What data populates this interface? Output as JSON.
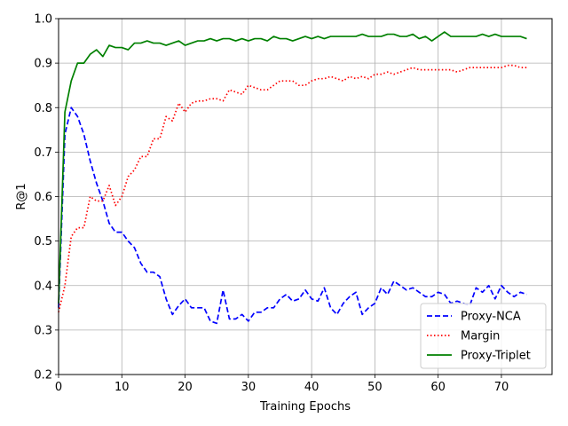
{
  "chart_data": {
    "type": "line",
    "title": "",
    "xlabel": "Training Epochs",
    "ylabel": "R@1",
    "xlim": [
      0,
      78
    ],
    "ylim": [
      0.2,
      1.0
    ],
    "xticks": [
      0,
      10,
      20,
      30,
      40,
      50,
      60,
      70
    ],
    "xtick_labels": [
      "0",
      "10",
      "20",
      "30",
      "40",
      "50",
      "60",
      "70"
    ],
    "yticks": [
      0.2,
      0.3,
      0.4,
      0.5,
      0.6,
      0.7,
      0.8,
      0.9,
      1.0
    ],
    "ytick_labels": [
      "0.2",
      "0.3",
      "0.4",
      "0.5",
      "0.6",
      "0.7",
      "0.8",
      "0.9",
      "1.0"
    ],
    "grid": true,
    "legend_position": "lower-right",
    "series": [
      {
        "name": "Proxy-NCA",
        "color": "#0000ff",
        "dash": "dashed",
        "x": [
          0,
          1,
          2,
          3,
          4,
          5,
          6,
          7,
          8,
          9,
          10,
          11,
          12,
          13,
          14,
          15,
          16,
          17,
          18,
          19,
          20,
          21,
          22,
          23,
          24,
          25,
          26,
          27,
          28,
          29,
          30,
          31,
          32,
          33,
          34,
          35,
          36,
          37,
          38,
          39,
          40,
          41,
          42,
          43,
          44,
          45,
          46,
          47,
          48,
          49,
          50,
          51,
          52,
          53,
          54,
          55,
          56,
          57,
          58,
          59,
          60,
          61,
          62,
          63,
          64,
          65,
          66,
          67,
          68,
          69,
          70,
          71,
          72,
          73,
          74
        ],
        "y": [
          0.35,
          0.74,
          0.8,
          0.78,
          0.74,
          0.68,
          0.63,
          0.59,
          0.54,
          0.52,
          0.52,
          0.5,
          0.485,
          0.45,
          0.43,
          0.43,
          0.42,
          0.37,
          0.335,
          0.355,
          0.37,
          0.35,
          0.35,
          0.35,
          0.32,
          0.315,
          0.39,
          0.325,
          0.325,
          0.335,
          0.32,
          0.34,
          0.34,
          0.35,
          0.35,
          0.37,
          0.38,
          0.365,
          0.37,
          0.39,
          0.37,
          0.365,
          0.395,
          0.35,
          0.335,
          0.36,
          0.375,
          0.385,
          0.335,
          0.35,
          0.36,
          0.395,
          0.38,
          0.41,
          0.4,
          0.39,
          0.395,
          0.385,
          0.375,
          0.375,
          0.385,
          0.38,
          0.36,
          0.365,
          0.36,
          0.355,
          0.395,
          0.385,
          0.4,
          0.37,
          0.4,
          0.385,
          0.375,
          0.385,
          0.38
        ]
      },
      {
        "name": "Margin",
        "color": "#ff0000",
        "dash": "dotted",
        "x": [
          0,
          1,
          2,
          3,
          4,
          5,
          6,
          7,
          8,
          9,
          10,
          11,
          12,
          13,
          14,
          15,
          16,
          17,
          18,
          19,
          20,
          21,
          22,
          23,
          24,
          25,
          26,
          27,
          28,
          29,
          30,
          31,
          32,
          33,
          34,
          35,
          36,
          37,
          38,
          39,
          40,
          41,
          42,
          43,
          44,
          45,
          46,
          47,
          48,
          49,
          50,
          51,
          52,
          53,
          54,
          55,
          56,
          57,
          58,
          59,
          60,
          61,
          62,
          63,
          64,
          65,
          66,
          67,
          68,
          69,
          70,
          71,
          72,
          73,
          74
        ],
        "y": [
          0.34,
          0.4,
          0.51,
          0.53,
          0.53,
          0.6,
          0.59,
          0.59,
          0.625,
          0.58,
          0.6,
          0.645,
          0.66,
          0.69,
          0.69,
          0.73,
          0.73,
          0.78,
          0.77,
          0.81,
          0.79,
          0.81,
          0.815,
          0.815,
          0.82,
          0.82,
          0.815,
          0.84,
          0.835,
          0.83,
          0.85,
          0.845,
          0.84,
          0.84,
          0.85,
          0.86,
          0.86,
          0.86,
          0.85,
          0.85,
          0.86,
          0.865,
          0.865,
          0.87,
          0.865,
          0.86,
          0.87,
          0.865,
          0.87,
          0.865,
          0.875,
          0.875,
          0.88,
          0.875,
          0.88,
          0.885,
          0.89,
          0.885,
          0.885,
          0.885,
          0.885,
          0.885,
          0.885,
          0.88,
          0.885,
          0.89,
          0.89,
          0.89,
          0.89,
          0.89,
          0.89,
          0.895,
          0.895,
          0.89,
          0.89
        ]
      },
      {
        "name": "Proxy-Triplet",
        "color": "#008000",
        "dash": "solid",
        "x": [
          0,
          1,
          2,
          3,
          4,
          5,
          6,
          7,
          8,
          9,
          10,
          11,
          12,
          13,
          14,
          15,
          16,
          17,
          18,
          19,
          20,
          21,
          22,
          23,
          24,
          25,
          26,
          27,
          28,
          29,
          30,
          31,
          32,
          33,
          34,
          35,
          36,
          37,
          38,
          39,
          40,
          41,
          42,
          43,
          44,
          45,
          46,
          47,
          48,
          49,
          50,
          51,
          52,
          53,
          54,
          55,
          56,
          57,
          58,
          59,
          60,
          61,
          62,
          63,
          64,
          65,
          66,
          67,
          68,
          69,
          70,
          71,
          72,
          73,
          74
        ],
        "y": [
          0.36,
          0.79,
          0.86,
          0.9,
          0.9,
          0.92,
          0.93,
          0.915,
          0.94,
          0.935,
          0.935,
          0.93,
          0.945,
          0.945,
          0.95,
          0.945,
          0.945,
          0.94,
          0.945,
          0.95,
          0.94,
          0.945,
          0.95,
          0.95,
          0.955,
          0.95,
          0.955,
          0.955,
          0.95,
          0.955,
          0.95,
          0.955,
          0.955,
          0.95,
          0.96,
          0.955,
          0.955,
          0.95,
          0.955,
          0.96,
          0.955,
          0.96,
          0.955,
          0.96,
          0.96,
          0.96,
          0.96,
          0.96,
          0.965,
          0.96,
          0.96,
          0.96,
          0.965,
          0.965,
          0.96,
          0.96,
          0.965,
          0.955,
          0.96,
          0.95,
          0.96,
          0.97,
          0.96,
          0.96,
          0.96,
          0.96,
          0.96,
          0.965,
          0.96,
          0.965,
          0.96,
          0.96,
          0.96,
          0.96,
          0.955
        ]
      }
    ]
  }
}
